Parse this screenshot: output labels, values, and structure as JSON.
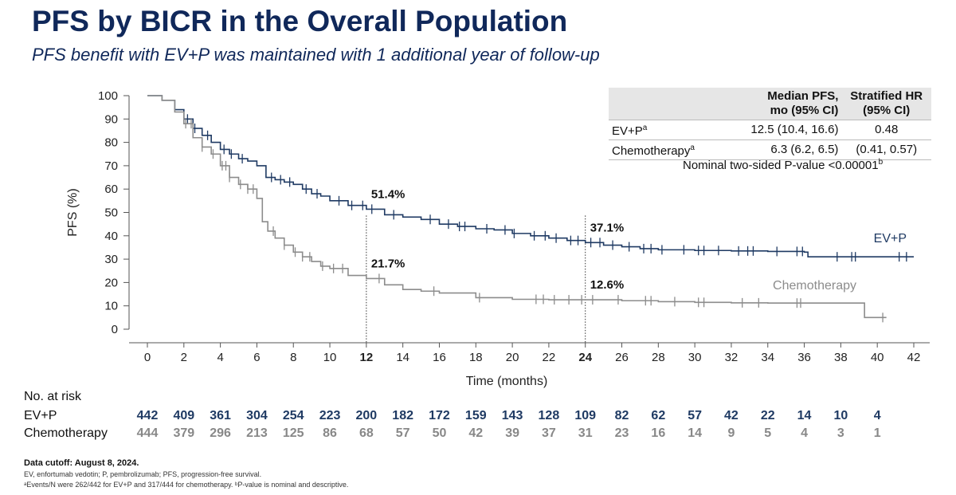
{
  "slide": {
    "title": "PFS by BICR in the Overall Population",
    "subtitle": "PFS benefit with EV+P was maintained with 1 additional year of follow-up"
  },
  "chart_data": {
    "type": "line",
    "title": "PFS by BICR in the Overall Population",
    "xlabel": "Time (months)",
    "ylabel": "PFS (%)",
    "xlim": [
      0,
      42
    ],
    "ylim": [
      0,
      100
    ],
    "x_ticks": [
      0,
      2,
      4,
      6,
      8,
      10,
      12,
      14,
      16,
      18,
      20,
      22,
      24,
      26,
      28,
      30,
      32,
      34,
      36,
      38,
      40,
      42
    ],
    "x_ticks_bold": [
      12,
      24
    ],
    "y_ticks": [
      0,
      10,
      20,
      30,
      40,
      50,
      60,
      70,
      80,
      90,
      100
    ],
    "grid": false,
    "reference_lines_x": [
      12,
      24
    ],
    "series": [
      {
        "name": "EV+P",
        "color": "#1f3a63",
        "x": [
          0,
          0.8,
          1.5,
          2,
          2.5,
          3,
          3.5,
          4,
          4.5,
          5,
          5.5,
          6,
          6.5,
          7,
          7.5,
          8,
          8.5,
          9,
          9.5,
          10,
          11,
          12,
          13,
          14,
          15,
          16,
          17,
          18,
          19,
          20,
          21,
          22,
          23,
          24,
          25,
          26,
          27,
          28,
          30,
          32,
          34,
          36,
          36.2,
          38,
          40,
          42
        ],
        "y": [
          100,
          98,
          94,
          90,
          86,
          83,
          80,
          77,
          75,
          73,
          72,
          70,
          65,
          64,
          63,
          62,
          60,
          58,
          57,
          55,
          53,
          51.4,
          49,
          48,
          47,
          45,
          44,
          43,
          42.5,
          41,
          40,
          39,
          38,
          37.1,
          36,
          35.3,
          34.5,
          34,
          33.7,
          33.5,
          33.3,
          33,
          31,
          31,
          31,
          31
        ],
        "censors_x": [
          2.2,
          2.6,
          3.3,
          4.2,
          4.6,
          5.2,
          6.8,
          7.3,
          7.8,
          8.7,
          9.3,
          10.5,
          11.2,
          11.8,
          12.3,
          13.5,
          15.5,
          16.5,
          17.1,
          17.4,
          18.6,
          19.6,
          20.1,
          21.2,
          21.8,
          22.4,
          23.2,
          23.6,
          24.3,
          24.8,
          25.5,
          26.4,
          27.2,
          27.6,
          28.2,
          29.4,
          30.2,
          30.5,
          31.3,
          32.4,
          32.9,
          33.2,
          34.5,
          35.6,
          35.9,
          37.8,
          38.6,
          38.8,
          41.2,
          41.6
        ],
        "annotations": [
          {
            "x": 12,
            "y": 51.4,
            "label": "51.4%"
          },
          {
            "x": 24,
            "y": 37.1,
            "label": "37.1%"
          }
        ]
      },
      {
        "name": "Chemotherapy",
        "color": "#8c8c8c",
        "x": [
          0,
          0.8,
          1.5,
          2,
          2.5,
          3,
          3.5,
          4,
          4.5,
          5,
          5.5,
          6,
          6.3,
          6.6,
          7,
          7.5,
          8,
          8.5,
          9,
          9.5,
          10,
          11,
          12,
          13,
          14,
          15,
          16,
          18,
          20,
          22,
          24,
          26,
          28,
          30,
          32,
          34,
          36,
          38,
          39.3,
          40.2,
          40.5
        ],
        "y": [
          100,
          98,
          93,
          88,
          82,
          78,
          75,
          70,
          65,
          62,
          60,
          56,
          46,
          42,
          39,
          36,
          33,
          31,
          29,
          27,
          26,
          23,
          21.7,
          19,
          17,
          16.3,
          15.5,
          13.5,
          12.8,
          12.6,
          12.6,
          12.2,
          11.8,
          11.5,
          11.3,
          11.2,
          11.2,
          11.2,
          5,
          5,
          5
        ],
        "censors_x": [
          2.1,
          2.4,
          3.0,
          3.6,
          4.1,
          4.3,
          4.5,
          5.1,
          5.5,
          5.8,
          6.9,
          7.5,
          8.1,
          8.5,
          8.9,
          9.6,
          10.2,
          10.7,
          12.7,
          15.7,
          18.2,
          21.3,
          21.7,
          22.3,
          23.1,
          23.8,
          24.4,
          25.8,
          27.3,
          27.6,
          28.9,
          30.2,
          30.5,
          32.6,
          33.5,
          35.6,
          35.8,
          40.3
        ],
        "annotations": [
          {
            "x": 12,
            "y": 21.7,
            "label": "21.7%"
          },
          {
            "x": 24,
            "y": 12.6,
            "label": "12.6%"
          }
        ]
      }
    ],
    "series_labels": [
      {
        "text": "EV+P",
        "series": "EV+P"
      },
      {
        "text": "Chemotherapy",
        "series": "Chemotherapy"
      }
    ]
  },
  "stats_table": {
    "headers": [
      "",
      "Median PFS,\nmo (95% CI)",
      "Stratified HR\n(95% CI)"
    ],
    "rows": [
      {
        "arm": "EV+P",
        "sup": "a",
        "median": "12.5 (10.4, 16.6)",
        "hr": "0.48"
      },
      {
        "arm": "Chemotherapy",
        "sup": "a",
        "median": "6.3 (6.2, 6.5)",
        "hr": "(0.41, 0.57)"
      }
    ],
    "pvalue": "Nominal two-sided P-value <0.00001",
    "pvalue_sup": "b"
  },
  "risk_table": {
    "title": "No. at risk",
    "times": [
      0,
      2,
      4,
      6,
      8,
      10,
      12,
      14,
      16,
      18,
      20,
      22,
      24,
      26,
      28,
      30,
      32,
      34,
      36,
      38,
      40
    ],
    "rows": [
      {
        "label": "EV+P",
        "values": [
          "442",
          "409",
          "361",
          "304",
          "254",
          "223",
          "200",
          "182",
          "172",
          "159",
          "143",
          "128",
          "109",
          "82",
          "62",
          "57",
          "42",
          "22",
          "14",
          "10",
          "4"
        ]
      },
      {
        "label": "Chemotherapy",
        "values": [
          "444",
          "379",
          "296",
          "213",
          "125",
          "86",
          "68",
          "57",
          "50",
          "42",
          "39",
          "37",
          "31",
          "23",
          "16",
          "14",
          "9",
          "5",
          "4",
          "3",
          "1"
        ]
      }
    ]
  },
  "footnotes": {
    "cutoff": "Data cutoff: August 8, 2024.",
    "abbreviations": "EV, enfortumab vedotin; P, pembrolizumab; PFS, progression-free survival.",
    "note": "ᵃEvents/N were 262/442 for EV+P and 317/444 for chemotherapy. ᵇP-value is nominal and descriptive."
  }
}
